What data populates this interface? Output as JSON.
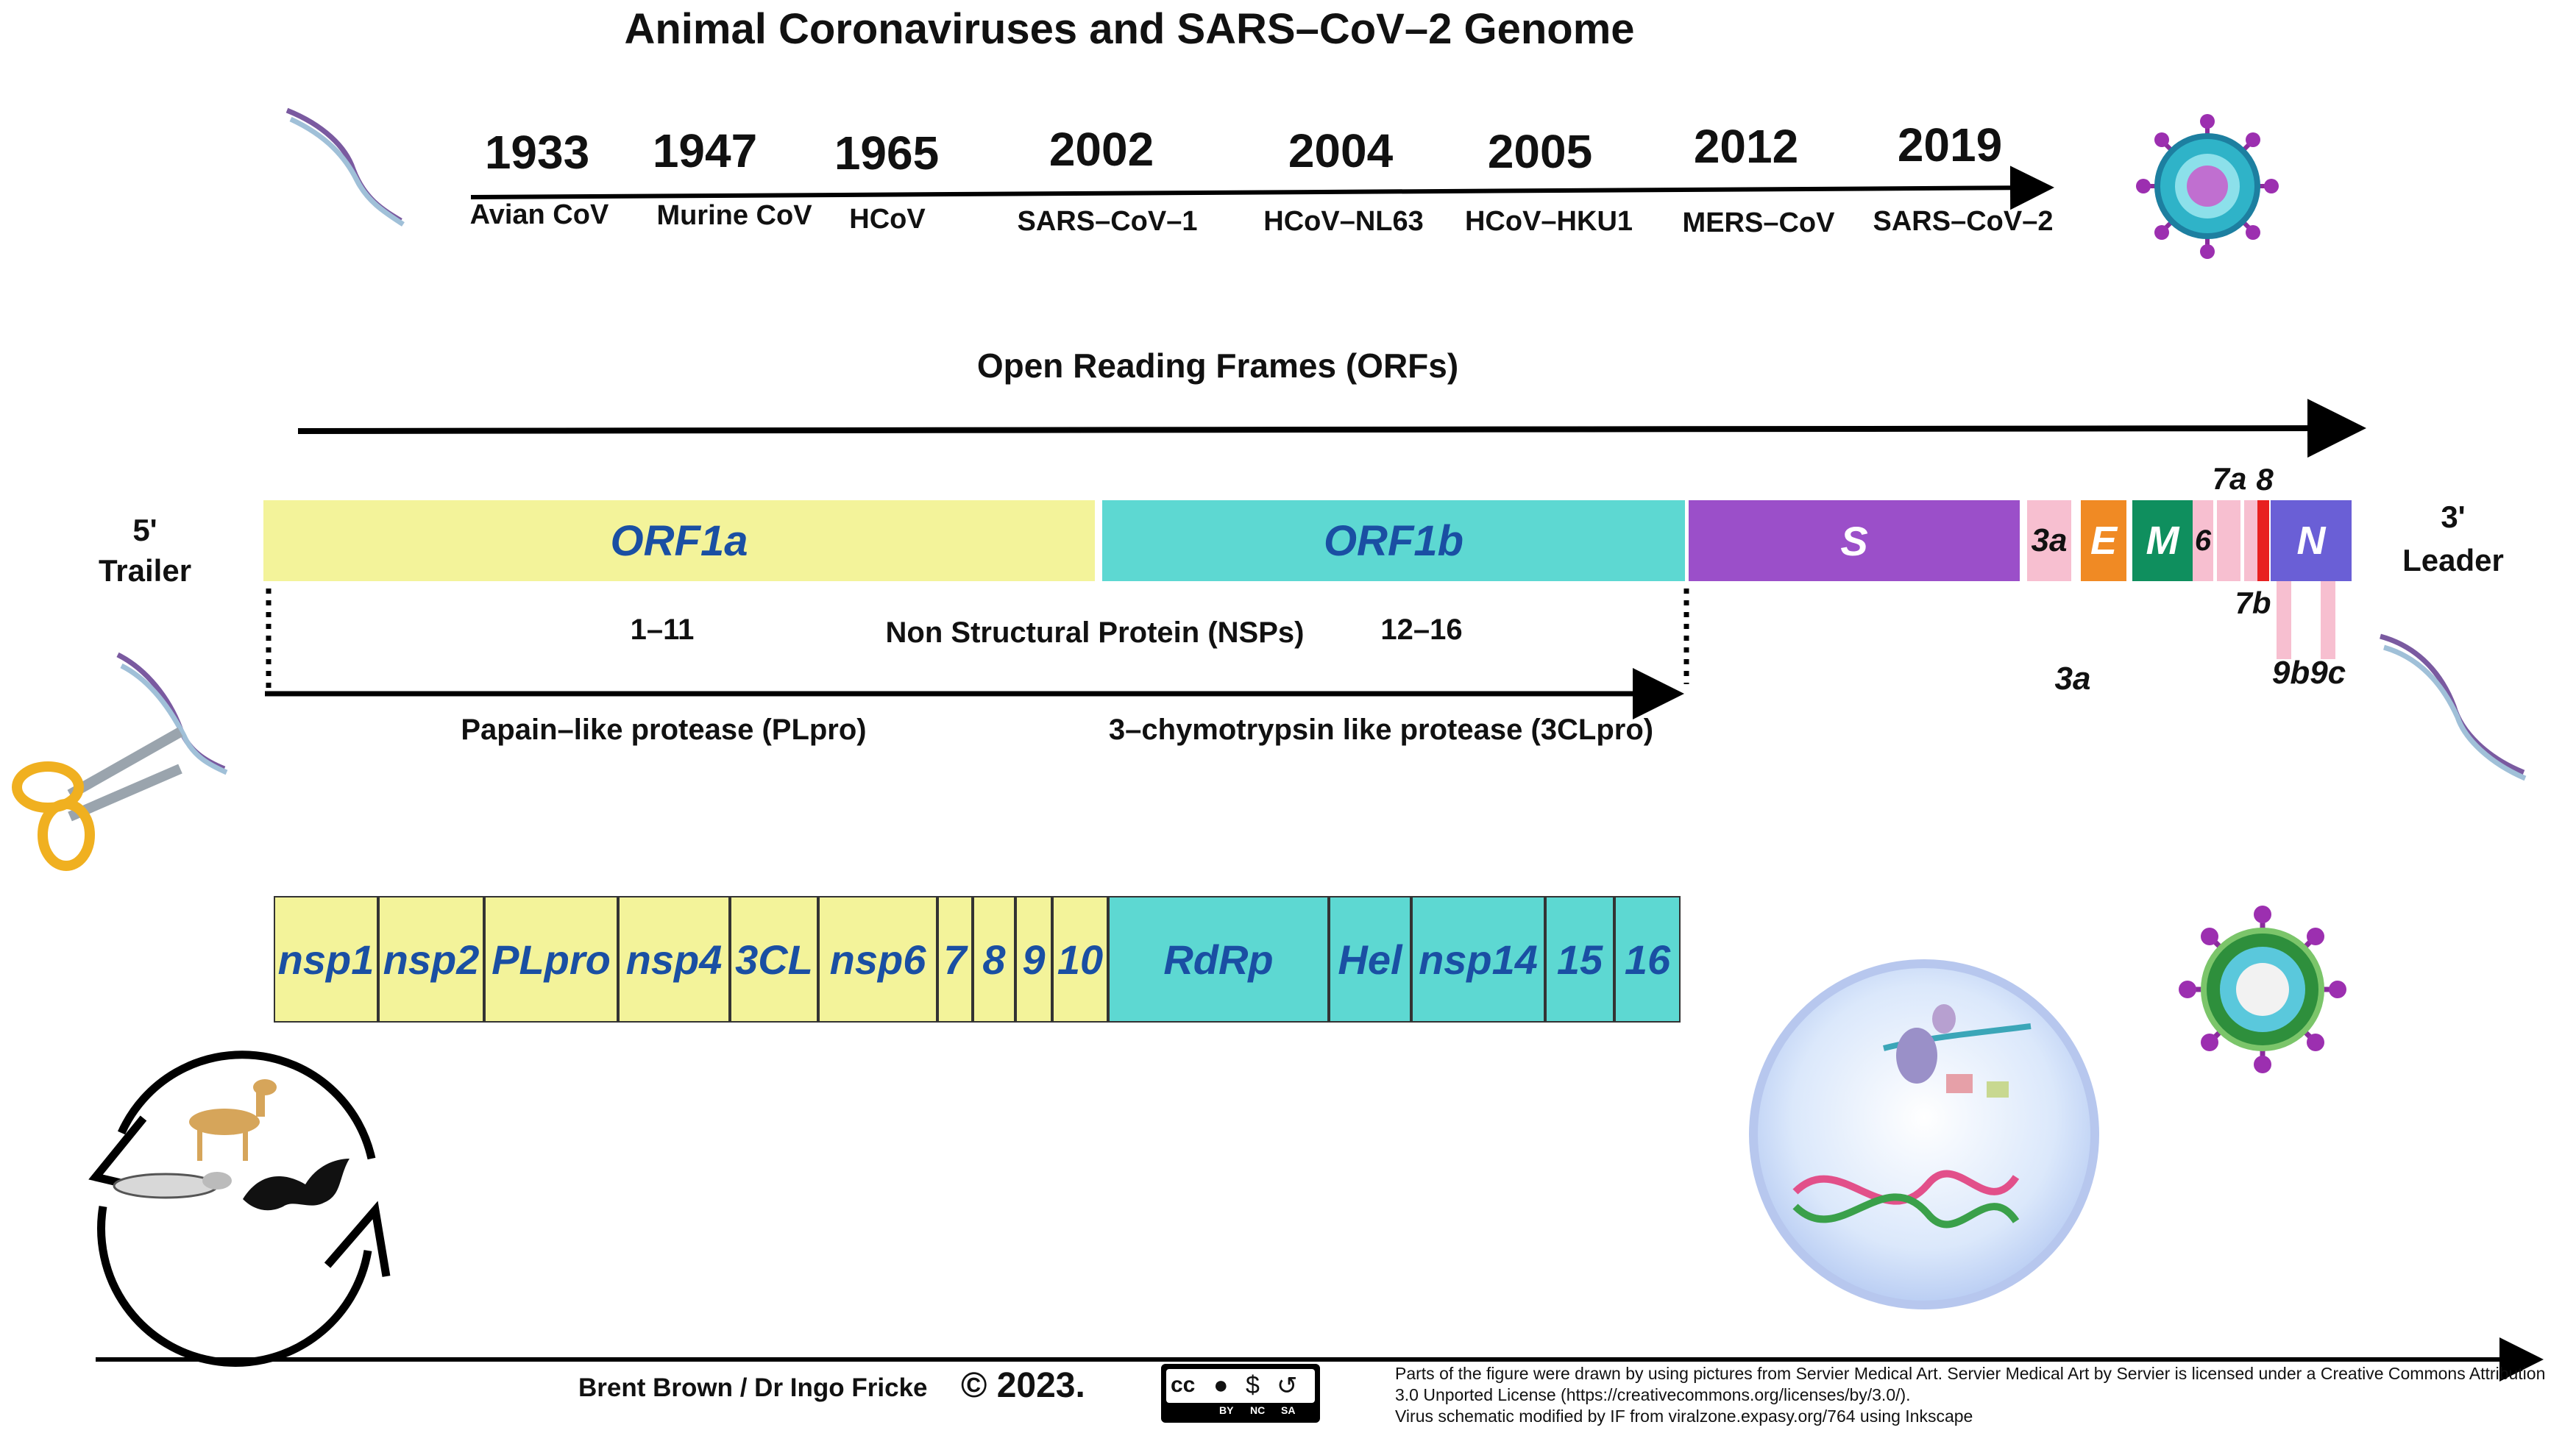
{
  "title": "Animal Coronaviruses and SARS–CoV–2 Genome",
  "timeline": [
    {
      "year": "1933",
      "label": "Avian CoV"
    },
    {
      "year": "1947",
      "label": "Murine CoV"
    },
    {
      "year": "1965",
      "label": "HCoV"
    },
    {
      "year": "2002",
      "label": "SARS–CoV–1"
    },
    {
      "year": "2004",
      "label": "HCoV–NL63"
    },
    {
      "year": "2005",
      "label": "HCoV–HKU1"
    },
    {
      "year": "2012",
      "label": "MERS–CoV"
    },
    {
      "year": "2019",
      "label": "SARS–CoV–2"
    }
  ],
  "orf_heading": "Open Reading Frames (ORFs)",
  "five_prime": {
    "line1": "5'",
    "line2": "Trailer"
  },
  "three_prime": {
    "line1": "3'",
    "line2": "Leader"
  },
  "genes": {
    "orf1a": "ORF1a",
    "orf1b": "ORF1b",
    "s": "S",
    "orf3a": "3a",
    "e": "E",
    "m": "M",
    "orf6": "6",
    "orf7a": "7a",
    "orf8": "8",
    "n": "N",
    "orf7b": "7b",
    "orf3a_below": "3a",
    "orf9b9c": "9b9c"
  },
  "nsp_info": {
    "range1": "1–11",
    "label": "Non Structural Protein (NSPs)",
    "range2": "12–16"
  },
  "proteases": {
    "plpro": "Papain–like protease (PLpro)",
    "clpro": "3–chymotrypsin like protease (3CLpro)"
  },
  "nsps": [
    {
      "label": "nsp1",
      "group": "a"
    },
    {
      "label": "nsp2",
      "group": "a"
    },
    {
      "label": "PLpro",
      "group": "a"
    },
    {
      "label": "nsp4",
      "group": "a"
    },
    {
      "label": "3CL",
      "group": "a"
    },
    {
      "label": "nsp6",
      "group": "a"
    },
    {
      "label": "7",
      "group": "a"
    },
    {
      "label": "8",
      "group": "a"
    },
    {
      "label": "9",
      "group": "a"
    },
    {
      "label": "10",
      "group": "a"
    },
    {
      "label": "RdRp",
      "group": "b"
    },
    {
      "label": "Hel",
      "group": "b"
    },
    {
      "label": "nsp14",
      "group": "b"
    },
    {
      "label": "15",
      "group": "b"
    },
    {
      "label": "16",
      "group": "b"
    }
  ],
  "footer": {
    "authors": "Brent Brown / Dr Ingo Fricke",
    "copyright": "© 2023.",
    "credit_line1": "Parts of the figure were drawn by using pictures from Servier Medical Art. Servier Medical Art by Servier is licensed under a Creative Commons Attribution 3.0 Unported License (https://creativecommons.org/licenses/by/3.0/).",
    "credit_line2": "Virus schematic modified by IF from viralzone.expasy.org/764 using Inkscape",
    "license_badge": [
      "BY",
      "NC",
      "SA"
    ]
  },
  "colors": {
    "orf1a": "#f3f39a",
    "orf1b": "#5dd8d2",
    "s": "#9b4fc9",
    "orf3a": "#f7bfd0",
    "e": "#f08a24",
    "m": "#0f8f5e",
    "pink": "#f7bfd0",
    "orf8": "#e82020",
    "n": "#6a5fd6"
  }
}
